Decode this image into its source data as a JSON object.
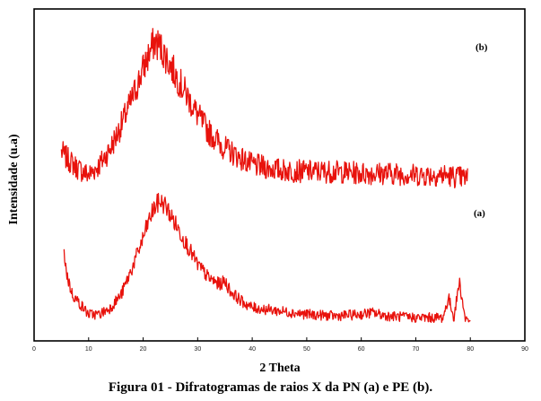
{
  "caption": "Figura 01 - Difratogramas de raios X da PN (a) e PE (b).",
  "chart_data": {
    "type": "line",
    "xlabel": "2 Theta",
    "ylabel": "Intensidade (u.a)",
    "xlim": [
      0,
      90
    ],
    "xticks": [
      "0",
      "10",
      "20",
      "30",
      "40",
      "50",
      "60",
      "70",
      "80",
      "90"
    ],
    "line_color": "#e8120c",
    "series": [
      {
        "name": "(b)",
        "x": [
          5,
          6,
          8,
          10,
          12,
          14,
          16,
          18,
          20,
          21,
          22,
          23,
          24,
          25,
          26,
          28,
          30,
          32,
          35,
          38,
          40,
          45,
          50,
          55,
          60,
          65,
          70,
          75,
          79.5
        ],
        "y": [
          0.57,
          0.55,
          0.52,
          0.5,
          0.53,
          0.58,
          0.65,
          0.73,
          0.82,
          0.86,
          0.9,
          0.89,
          0.86,
          0.83,
          0.8,
          0.74,
          0.68,
          0.63,
          0.58,
          0.55,
          0.53,
          0.515,
          0.51,
          0.51,
          0.505,
          0.505,
          0.5,
          0.5,
          0.49
        ]
      },
      {
        "name": "(a)",
        "x": [
          5.5,
          6,
          7,
          8,
          9,
          10,
          12,
          14,
          16,
          18,
          20,
          21,
          22,
          23,
          24,
          25,
          26,
          28,
          30,
          32,
          34,
          35,
          36,
          38,
          40,
          45,
          50,
          55,
          60,
          62,
          65,
          70,
          75,
          76,
          77,
          78,
          79,
          80
        ],
        "y": [
          0.27,
          0.2,
          0.14,
          0.12,
          0.1,
          0.08,
          0.08,
          0.1,
          0.14,
          0.22,
          0.31,
          0.36,
          0.4,
          0.42,
          0.41,
          0.38,
          0.35,
          0.29,
          0.23,
          0.19,
          0.17,
          0.18,
          0.15,
          0.12,
          0.1,
          0.09,
          0.08,
          0.075,
          0.08,
          0.085,
          0.075,
          0.07,
          0.07,
          0.13,
          0.07,
          0.18,
          0.07,
          0.06
        ]
      }
    ]
  }
}
